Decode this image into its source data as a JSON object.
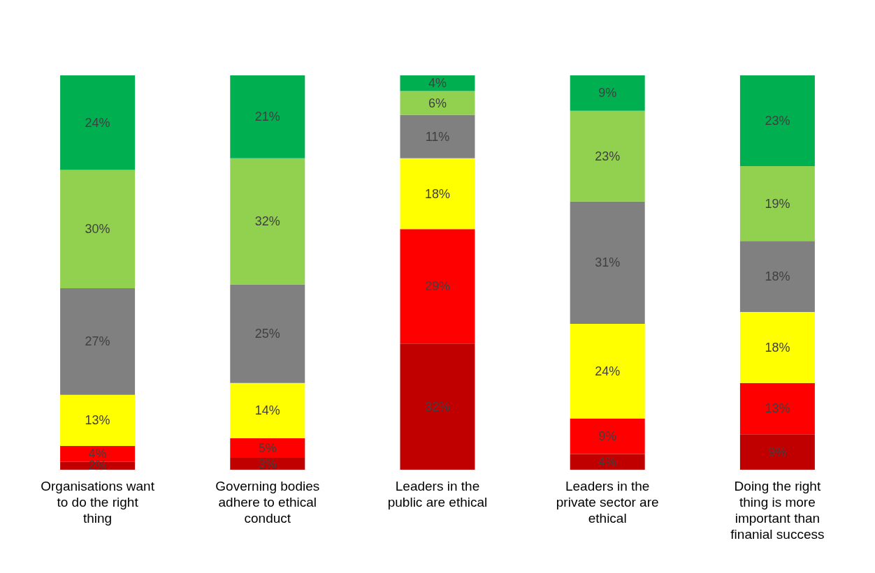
{
  "chart_data": {
    "type": "bar",
    "stacked": true,
    "ylim": [
      0,
      100
    ],
    "tick_labels": "x",
    "grid": false,
    "legend": false,
    "categories": [
      "Organisations want to do the right thing",
      "Governing bodies adhere to ethical conduct",
      "Leaders in the public are ethical",
      "Leaders in the private sector are ethical",
      "Doing the right thing is more important than finanial success"
    ],
    "series": [
      {
        "color": "#c00000",
        "values": [
          2,
          3,
          32,
          4,
          9
        ],
        "value_labels": [
          "2%",
          "3%",
          "32%",
          "4%",
          "9%"
        ]
      },
      {
        "color": "#ff0000",
        "values": [
          4,
          5,
          29,
          9,
          13
        ],
        "value_labels": [
          "4%",
          "5%",
          "29%",
          "9%",
          "13%"
        ]
      },
      {
        "color": "#ffff00",
        "values": [
          13,
          14,
          18,
          24,
          18
        ],
        "value_labels": [
          "13%",
          "14%",
          "18%",
          "24%",
          "18%"
        ]
      },
      {
        "color": "#808080",
        "values": [
          27,
          25,
          11,
          31,
          18
        ],
        "value_labels": [
          "27%",
          "25%",
          "11%",
          "31%",
          "18%"
        ]
      },
      {
        "color": "#92d050",
        "values": [
          30,
          32,
          6,
          23,
          19
        ],
        "value_labels": [
          "30%",
          "32%",
          "6%",
          "23%",
          "19%"
        ]
      },
      {
        "color": "#00b050",
        "values": [
          24,
          21,
          4,
          9,
          23
        ],
        "value_labels": [
          "24%",
          "21%",
          "4%",
          "9%",
          "23%"
        ]
      }
    ]
  }
}
